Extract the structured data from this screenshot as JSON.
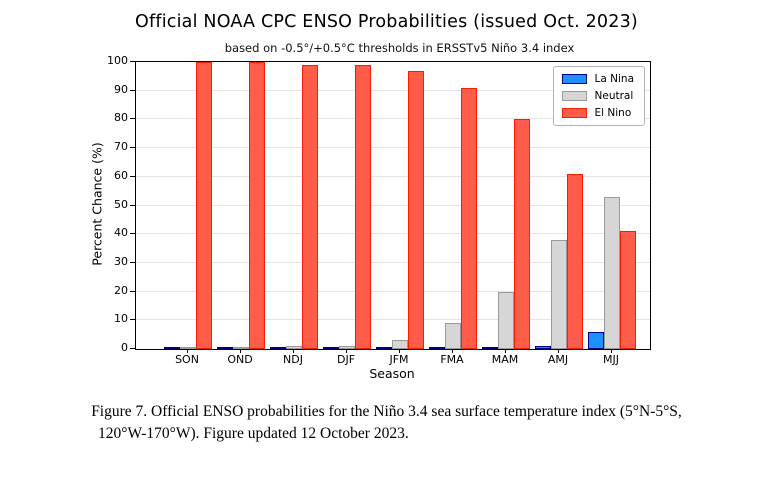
{
  "title": "Official NOAA CPC ENSO Probabilities (issued Oct. 2023)",
  "subtitle": "based on -0.5°/+0.5°C thresholds in ERSSTv5 Niño 3.4 index",
  "chart_data": {
    "type": "bar",
    "title": "Official NOAA CPC ENSO Probabilities (issued Oct. 2023)",
    "subtitle": "based on -0.5°/+0.5°C thresholds in ERSSTv5 Niño 3.4 index",
    "categories": [
      "SON",
      "OND",
      "NDJ",
      "DJF",
      "JFM",
      "FMA",
      "MAM",
      "AMJ",
      "MJJ"
    ],
    "series": [
      {
        "name": "La Nina",
        "fill": "#1e90ff",
        "edge": "#00008b",
        "values": [
          0,
          0,
          0,
          0,
          0,
          0,
          0,
          1,
          6
        ]
      },
      {
        "name": "Neutral",
        "fill": "#d6d6d6",
        "edge": "#9a9a9a",
        "values": [
          0,
          0,
          1,
          1,
          3,
          9,
          20,
          38,
          53
        ]
      },
      {
        "name": "El Nino",
        "fill": "#ff5c4a",
        "edge": "#f81e00",
        "values": [
          100,
          100,
          99,
          99,
          97,
          91,
          80,
          61,
          41
        ]
      }
    ],
    "xlabel": "Season",
    "ylabel": "Percent Chance (%)",
    "ylim": [
      0,
      100
    ],
    "yticks": [
      0,
      10,
      20,
      30,
      40,
      50,
      60,
      70,
      80,
      90,
      100
    ],
    "grid": true,
    "legend_position": "top-right",
    "gridline_color": "#e4e4e4"
  },
  "caption": {
    "line1": "Figure 7. Official ENSO probabilities for the Niño 3.4 sea surface temperature index (5°N-5°S,",
    "line2": "120°W-170°W). Figure updated 12 October 2023."
  }
}
